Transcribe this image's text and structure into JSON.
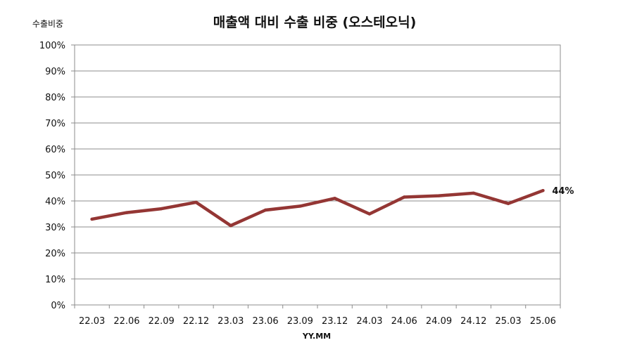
{
  "chart_data": {
    "type": "line",
    "title": "매출액 대비 수출 비중 (오스테오닉)",
    "ylabel": "수출비중",
    "xlabel": "YY.MM",
    "ylim": [
      0,
      100
    ],
    "y_ticks": [
      "0%",
      "10%",
      "20%",
      "30%",
      "40%",
      "50%",
      "60%",
      "70%",
      "80%",
      "90%",
      "100%"
    ],
    "categories": [
      "22.03",
      "22.06",
      "22.09",
      "22.12",
      "23.03",
      "23.06",
      "23.09",
      "23.12",
      "24.03",
      "24.06",
      "24.09",
      "24.12",
      "25.03",
      "25.06"
    ],
    "series": [
      {
        "values": [
          33,
          35.5,
          37,
          39.5,
          30.5,
          36.5,
          38,
          41,
          35,
          41.5,
          42,
          43,
          39,
          44
        ],
        "color": "#943634"
      }
    ],
    "data_labels": [
      {
        "index": 13,
        "text": "44%"
      }
    ],
    "grid": true,
    "legend": "none"
  }
}
